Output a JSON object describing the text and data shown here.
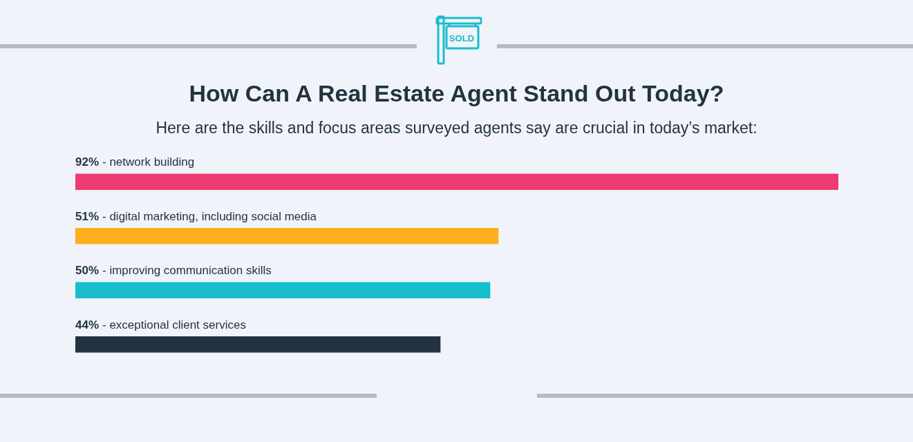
{
  "chart_data": {
    "type": "bar",
    "orientation": "horizontal",
    "title": "How Can A Real Estate Agent Stand Out Today?",
    "subtitle": "Here are the skills and focus areas surveyed agents say are crucial in today’s market:",
    "categories": [
      "- network building",
      "- digital marketing, including social media",
      "- improving communication skills",
      "- exceptional client services"
    ],
    "values": [
      92,
      51,
      50,
      44
    ],
    "colors": [
      "#ef3a73",
      "#fcb01f",
      "#16bdcd",
      "#233340"
    ],
    "value_labels": [
      "92%",
      "51%",
      "50%",
      "44%"
    ],
    "xlim": [
      0,
      92
    ],
    "tick_labels": "y",
    "annotations": [
      "SOLD"
    ]
  }
}
